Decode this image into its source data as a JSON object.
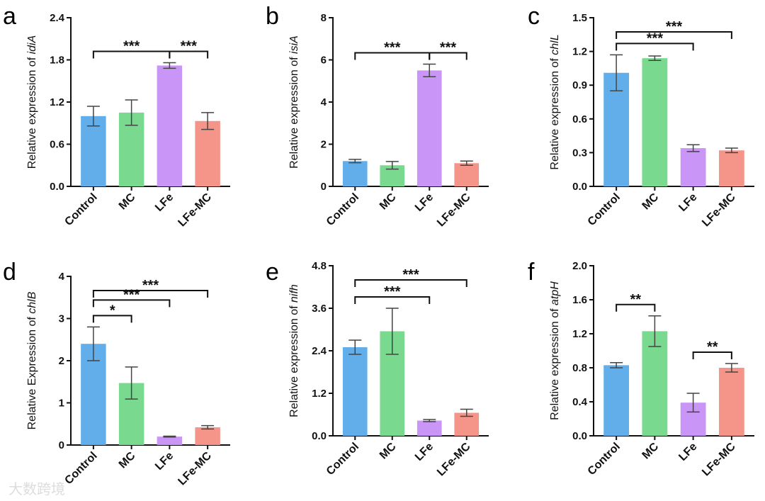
{
  "watermark": "大数跨境",
  "colors": {
    "Control": "#62aeea",
    "MC": "#79d98f",
    "LFe": "#c996f7",
    "LFe-MC": "#f59488"
  },
  "chart_data": [
    {
      "panel": "a",
      "type": "bar",
      "ylabel_prefix": "Relative expression of ",
      "gene": "idiA",
      "categories": [
        "Control",
        "MC",
        "LFe",
        "LFe-MC"
      ],
      "values": [
        1.0,
        1.05,
        1.72,
        0.93
      ],
      "errors": [
        0.14,
        0.18,
        0.04,
        0.12
      ],
      "ylim": [
        0,
        2.4
      ],
      "yticks": [
        "0.0",
        "0.6",
        "1.2",
        "1.8",
        "2.4"
      ],
      "significance": [
        {
          "from": "Control",
          "to": "LFe",
          "label": "***"
        },
        {
          "from": "LFe",
          "to": "LFe-MC",
          "label": "***"
        }
      ]
    },
    {
      "panel": "b",
      "type": "bar",
      "ylabel_prefix": "Relative expression of ",
      "gene": "isiA",
      "categories": [
        "Control",
        "MC",
        "LFe",
        "LFe-MC"
      ],
      "values": [
        1.2,
        1.0,
        5.5,
        1.1
      ],
      "errors": [
        0.08,
        0.18,
        0.3,
        0.1
      ],
      "ylim": [
        0,
        8
      ],
      "yticks": [
        "0",
        "2",
        "4",
        "6",
        "8"
      ],
      "significance": [
        {
          "from": "Control",
          "to": "LFe",
          "label": "***"
        },
        {
          "from": "LFe",
          "to": "LFe-MC",
          "label": "***"
        }
      ]
    },
    {
      "panel": "c",
      "type": "bar",
      "ylabel_prefix": "Relative expression of ",
      "gene": "chlL",
      "categories": [
        "Control",
        "MC",
        "LFe",
        "LFe-MC"
      ],
      "values": [
        1.01,
        1.14,
        0.34,
        0.32
      ],
      "errors": [
        0.16,
        0.02,
        0.03,
        0.02
      ],
      "ylim": [
        0,
        1.5
      ],
      "yticks": [
        "0.0",
        "0.3",
        "0.6",
        "0.9",
        "1.2",
        "1.5"
      ],
      "significance": [
        {
          "from": "Control",
          "to": "LFe",
          "label": "***"
        },
        {
          "from": "Control",
          "to": "LFe-MC",
          "label": "***"
        }
      ]
    },
    {
      "panel": "d",
      "type": "bar",
      "ylabel_prefix": "Relative Expression of ",
      "gene": "chlB",
      "categories": [
        "Control",
        "MC",
        "LFe",
        "LFe-MC"
      ],
      "values": [
        2.4,
        1.47,
        0.2,
        0.42
      ],
      "errors": [
        0.4,
        0.38,
        0.01,
        0.04
      ],
      "ylim": [
        0,
        4
      ],
      "yticks": [
        "0",
        "1",
        "2",
        "3",
        "4"
      ],
      "significance": [
        {
          "from": "Control",
          "to": "MC",
          "label": "*"
        },
        {
          "from": "Control",
          "to": "LFe",
          "label": "***"
        },
        {
          "from": "Control",
          "to": "LFe-MC",
          "label": "***"
        }
      ]
    },
    {
      "panel": "e",
      "type": "bar",
      "ylabel_prefix": "Relative expression of ",
      "gene": "nifh",
      "categories": [
        "Control",
        "MC",
        "LFe",
        "LFe-MC"
      ],
      "values": [
        2.5,
        2.95,
        0.43,
        0.65
      ],
      "errors": [
        0.2,
        0.65,
        0.03,
        0.1
      ],
      "ylim": [
        0,
        4.8
      ],
      "yticks": [
        "0.0",
        "1.2",
        "2.4",
        "3.6",
        "4.8"
      ],
      "significance": [
        {
          "from": "Control",
          "to": "LFe",
          "label": "***"
        },
        {
          "from": "Control",
          "to": "LFe-MC",
          "label": "***"
        }
      ]
    },
    {
      "panel": "f",
      "type": "bar",
      "ylabel_prefix": "Relative expression of ",
      "gene": "atpH",
      "categories": [
        "Control",
        "MC",
        "LFe",
        "LFe-MC"
      ],
      "values": [
        0.83,
        1.23,
        0.39,
        0.8
      ],
      "errors": [
        0.03,
        0.18,
        0.11,
        0.05
      ],
      "ylim": [
        0,
        2.0
      ],
      "yticks": [
        "0.0",
        "0.4",
        "0.8",
        "1.2",
        "1.6",
        "2.0"
      ],
      "significance": [
        {
          "from": "Control",
          "to": "MC",
          "label": "**"
        },
        {
          "from": "LFe",
          "to": "LFe-MC",
          "label": "**"
        }
      ]
    }
  ]
}
